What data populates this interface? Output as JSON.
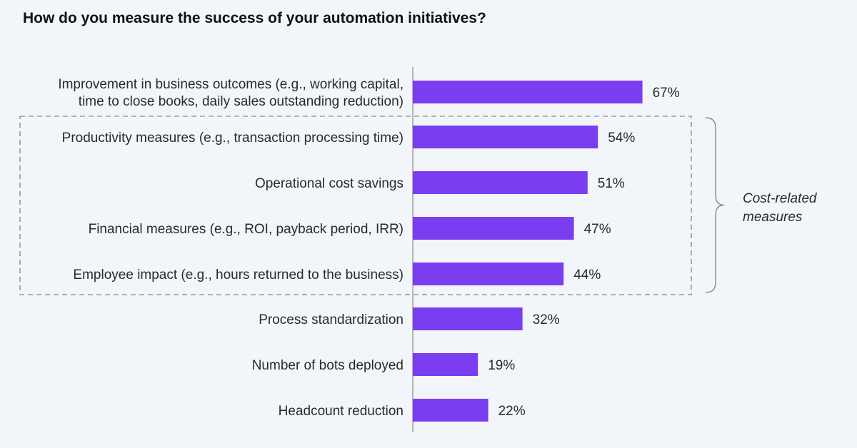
{
  "chart_data": {
    "type": "bar",
    "orientation": "horizontal",
    "title": "How do you measure the success of your automation initiatives?",
    "categories": [
      [
        "Improvement in business outcomes (e.g., working capital,",
        "time to close books, daily sales outstanding reduction)"
      ],
      [
        "Productivity measures (e.g., transaction processing time)"
      ],
      [
        "Operational cost savings"
      ],
      [
        "Financial measures (e.g., ROI, payback period, IRR)"
      ],
      [
        "Employee impact (e.g., hours returned to the business)"
      ],
      [
        "Process standardization"
      ],
      [
        "Number of bots deployed"
      ],
      [
        "Headcount reduction"
      ]
    ],
    "values": [
      67,
      54,
      51,
      47,
      44,
      32,
      19,
      22
    ],
    "value_labels": [
      "67%",
      "54%",
      "51%",
      "47%",
      "44%",
      "32%",
      "19%",
      "22%"
    ],
    "xlim": [
      0,
      100
    ],
    "bar_color": "#7a3ef0",
    "grid": false,
    "group": {
      "label": [
        "Cost-related",
        "measures"
      ],
      "first_index": 1,
      "last_index": 4
    }
  }
}
